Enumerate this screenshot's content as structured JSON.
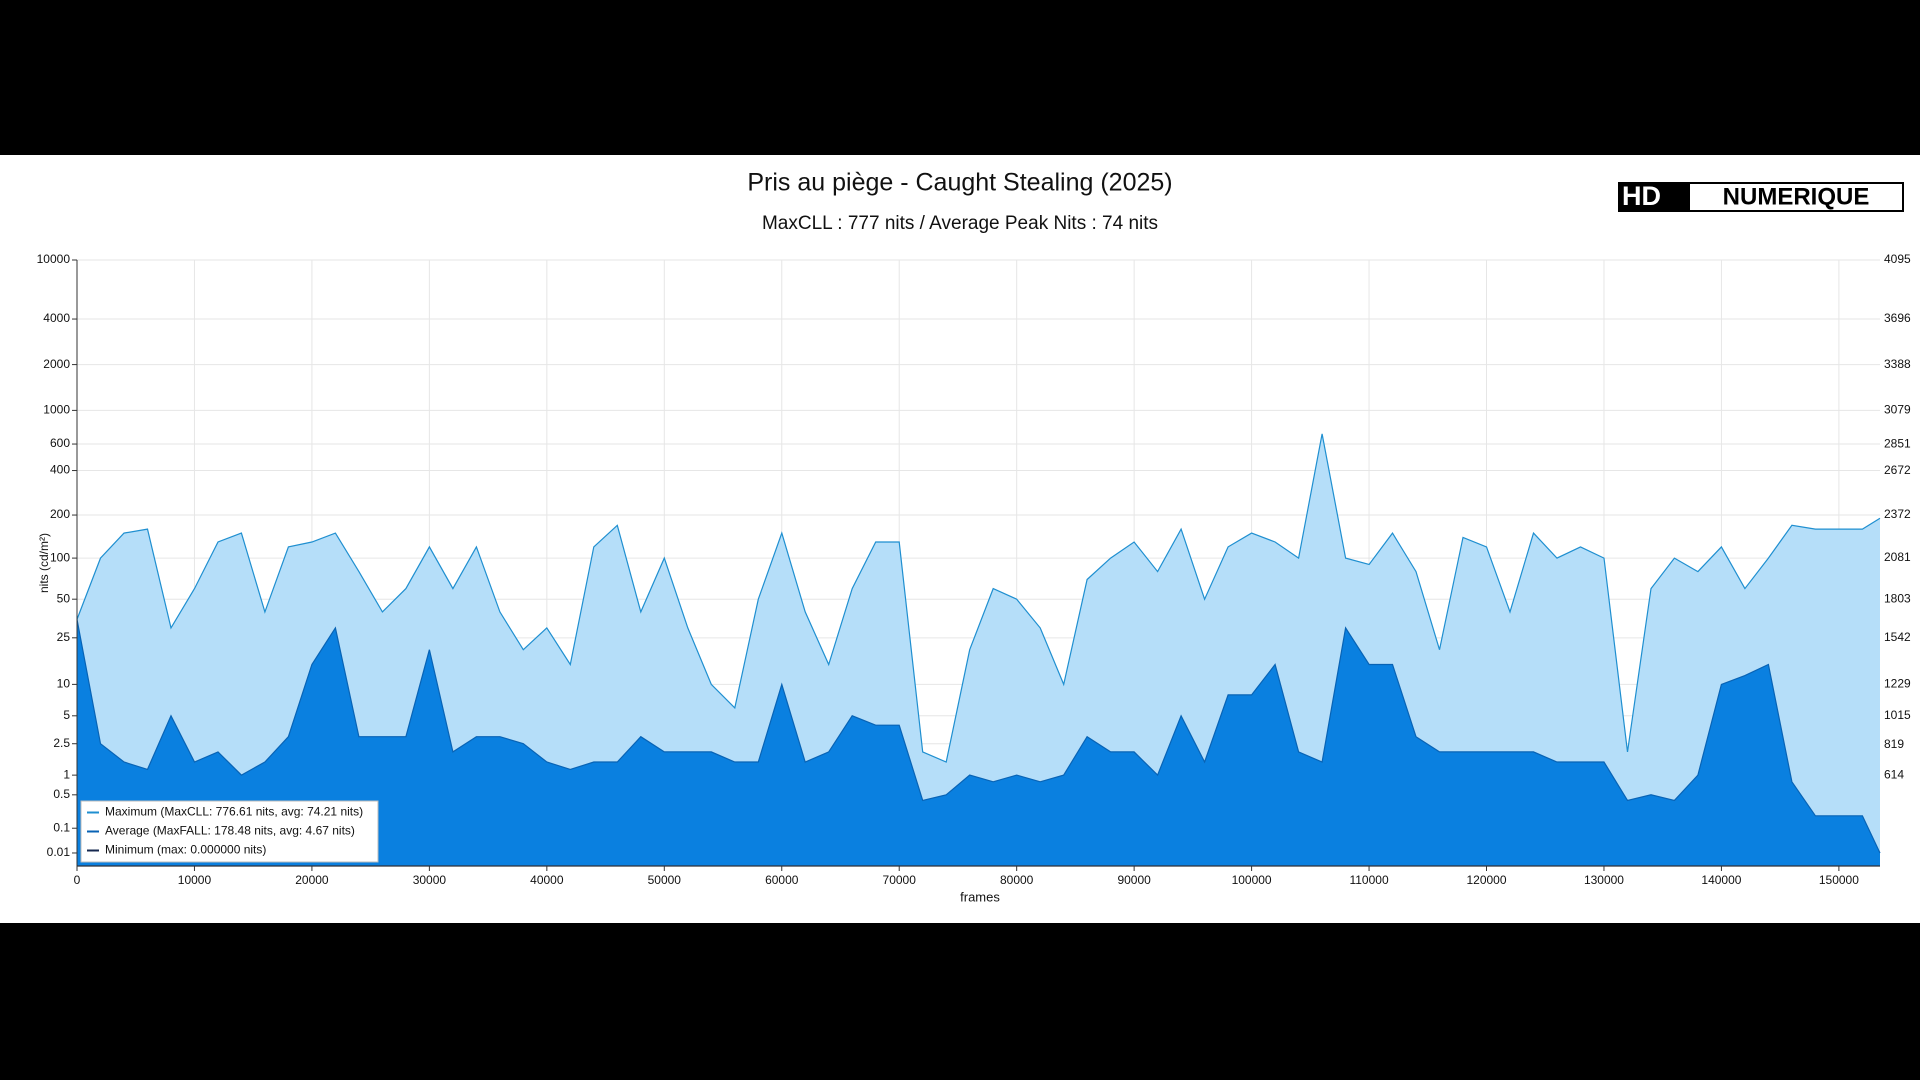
{
  "chart_data": {
    "type": "area",
    "title": "Pris au piège - Caught Stealing (2025)",
    "subtitle": "MaxCLL : 777 nits / Average Peak Nits : 74 nits",
    "logo": [
      "HD",
      "NUMERIQUE"
    ],
    "xlabel": "frames",
    "ylabel": "nits (cd/m²)",
    "y_scale": "pq",
    "grid": true,
    "legend": "lower left",
    "xlim": [
      0,
      153500
    ],
    "xticks": [
      0,
      10000,
      20000,
      30000,
      40000,
      50000,
      60000,
      70000,
      80000,
      90000,
      100000,
      110000,
      120000,
      130000,
      140000,
      150000
    ],
    "ylim": [
      0,
      10000
    ],
    "yticks": [
      0.01,
      0.1,
      0.5,
      1,
      2.5,
      5,
      10,
      25,
      50,
      100,
      200,
      400,
      600,
      1000,
      2000,
      4000,
      10000
    ],
    "y2lim": [
      0,
      4095
    ],
    "y2ticks": [
      614,
      819,
      1015,
      1229,
      1542,
      1803,
      2081,
      2372,
      2672,
      2851,
      3079,
      3388,
      3696,
      4095
    ],
    "x": [
      0,
      2000,
      4000,
      6000,
      8000,
      10000,
      12000,
      14000,
      16000,
      18000,
      20000,
      22000,
      24000,
      26000,
      28000,
      30000,
      32000,
      34000,
      36000,
      38000,
      40000,
      42000,
      44000,
      46000,
      48000,
      50000,
      52000,
      54000,
      56000,
      58000,
      60000,
      62000,
      64000,
      66000,
      68000,
      70000,
      72000,
      74000,
      76000,
      78000,
      80000,
      82000,
      84000,
      86000,
      88000,
      90000,
      92000,
      94000,
      96000,
      98000,
      100000,
      102000,
      104000,
      106000,
      108000,
      110000,
      112000,
      114000,
      116000,
      118000,
      120000,
      122000,
      124000,
      126000,
      128000,
      130000,
      132000,
      134000,
      136000,
      138000,
      140000,
      142000,
      144000,
      146000,
      148000,
      150000,
      152000,
      153500
    ],
    "series": [
      {
        "name": "Maximum (MaxCLL: 776.61 nits, avg: 74.21 nits)",
        "color": "#1f8fd0",
        "fill": "#b5def9",
        "values": [
          35,
          100,
          150,
          160,
          30,
          60,
          130,
          150,
          40,
          120,
          130,
          150,
          80,
          40,
          60,
          120,
          60,
          120,
          40,
          20,
          30,
          15,
          120,
          170,
          40,
          100,
          30,
          10,
          6,
          50,
          150,
          40,
          15,
          60,
          130,
          130,
          2,
          1.5,
          20,
          60,
          50,
          30,
          10,
          70,
          100,
          130,
          80,
          160,
          50,
          120,
          150,
          130,
          100,
          700,
          100,
          90,
          150,
          80,
          20,
          140,
          120,
          40,
          150,
          100,
          120,
          100,
          2,
          60,
          100,
          80,
          120,
          60,
          100,
          170,
          160,
          160,
          160,
          190
        ]
      },
      {
        "name": "Average (MaxFALL: 178.48 nits, avg: 4.67 nits)",
        "color": "#0863b5",
        "fill": "#0a80e0",
        "values": [
          35,
          2.5,
          1.5,
          1.2,
          5,
          1.5,
          2,
          1,
          1.5,
          3,
          15,
          30,
          3,
          3,
          3,
          20,
          2,
          3,
          3,
          2.5,
          1.5,
          1.2,
          1.5,
          1.5,
          3,
          2,
          2,
          2,
          1.5,
          1.5,
          10,
          1.5,
          2,
          5,
          4,
          4,
          0.4,
          0.5,
          1,
          0.8,
          1,
          0.8,
          1,
          3,
          2,
          2,
          1,
          5,
          1.5,
          8,
          8,
          15,
          2,
          1.5,
          30,
          15,
          15,
          3,
          2,
          2,
          2,
          2,
          2,
          1.5,
          1.5,
          1.5,
          0.4,
          0.5,
          0.4,
          1,
          10,
          12,
          15,
          0.8,
          0.2,
          0.2,
          0.2,
          0.01
        ]
      },
      {
        "name": "Minimum (max: 0.000000 nits)",
        "color": "#15284f",
        "fill": "#15284f",
        "values": [
          0,
          0,
          0,
          0,
          0,
          0,
          0,
          0,
          0,
          0,
          0,
          0,
          0,
          0,
          0,
          0,
          0,
          0,
          0,
          0,
          0,
          0,
          0,
          0,
          0,
          0,
          0,
          0,
          0,
          0,
          0,
          0,
          0,
          0,
          0,
          0,
          0,
          0,
          0,
          0,
          0,
          0,
          0,
          0,
          0,
          0,
          0,
          0,
          0,
          0,
          0,
          0,
          0,
          0,
          0,
          0,
          0,
          0,
          0,
          0,
          0,
          0,
          0,
          0,
          0,
          0,
          0,
          0,
          0,
          0,
          0,
          0,
          0,
          0,
          0,
          0,
          0,
          0
        ]
      }
    ]
  }
}
